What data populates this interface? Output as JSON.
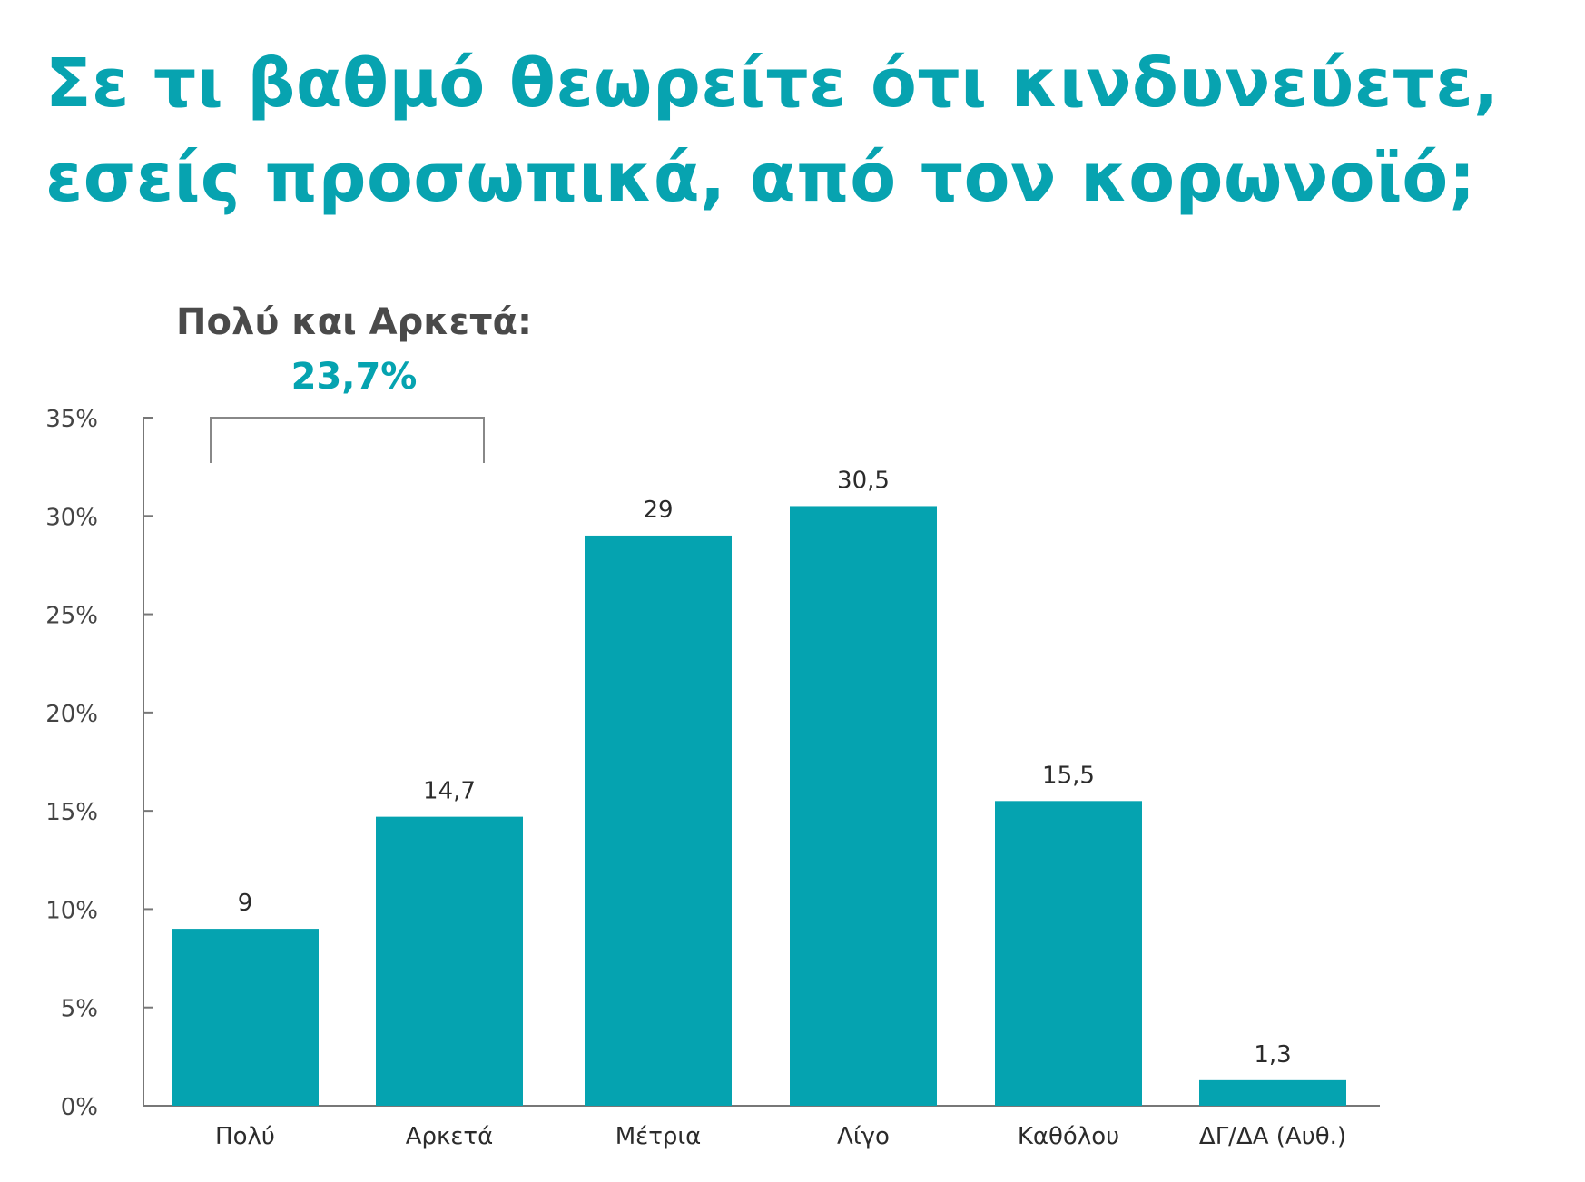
{
  "page": {
    "title": "Σε τι βαθμό θεωρείτε ότι κινδυνεύετε, εσείς προσωπικά, από τον κορωνοϊό;"
  },
  "colors": {
    "accent": "#05a3b0",
    "bar": "#05a3b0",
    "annotation_label": "#4a4a4a",
    "axis": "#777777",
    "text": "#2b2b2b"
  },
  "chart_data": {
    "type": "bar",
    "title": "Σε τι βαθμό θεωρείτε ότι κινδυνεύετε, εσείς προσωπικά, από τον κορωνοϊό;",
    "xlabel": "",
    "ylabel": "",
    "categories": [
      "Πολύ",
      "Αρκετά",
      "Μέτρια",
      "Λίγο",
      "Καθόλου",
      "ΔΓ/ΔΑ (Αυθ.)"
    ],
    "values": [
      9,
      14.7,
      29,
      30.5,
      15.5,
      1.3
    ],
    "value_labels": [
      "9",
      "14,7",
      "29",
      "30,5",
      "15,5",
      "1,3"
    ],
    "ylim": [
      0,
      35
    ],
    "yticks": [
      0,
      5,
      10,
      15,
      20,
      25,
      30,
      35
    ],
    "ytick_labels": [
      "0%",
      "5%",
      "10%",
      "15%",
      "20%",
      "25%",
      "30%",
      "35%"
    ],
    "grid": false,
    "legend": "none",
    "annotation": {
      "label": "Πολύ και Αρκετά:",
      "value": "23,7%",
      "spans_categories": [
        "Πολύ",
        "Αρκετά"
      ]
    }
  }
}
